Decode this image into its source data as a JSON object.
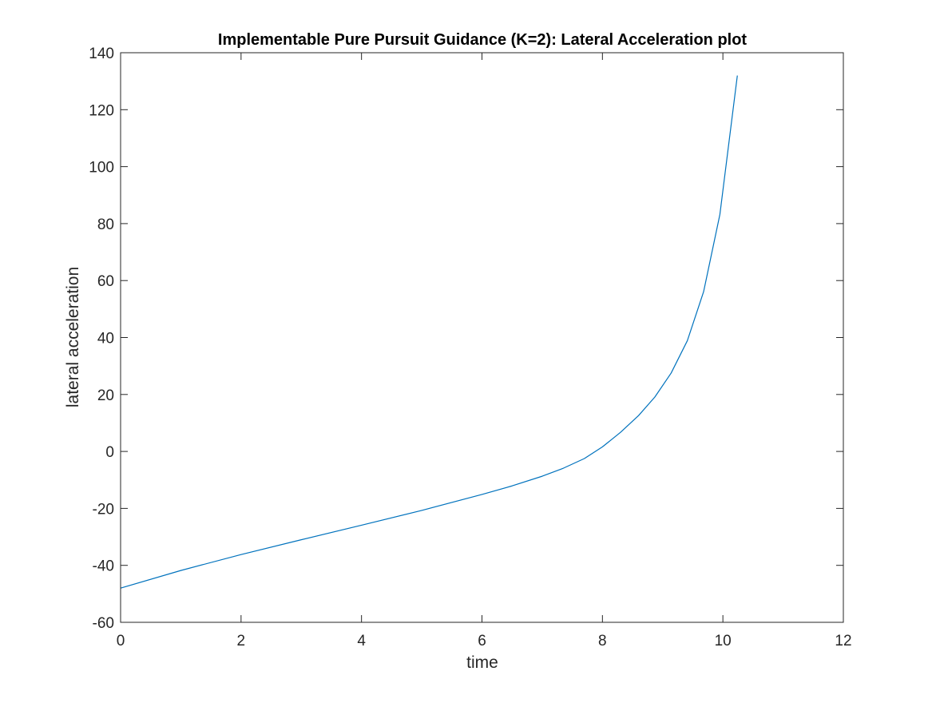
{
  "chart_data": {
    "type": "line",
    "title": "Implementable Pure Pursuit Guidance (K=2): Lateral Acceleration plot",
    "xlabel": "time",
    "ylabel": "lateral acceleration",
    "xlim": [
      0,
      12
    ],
    "ylim": [
      -60,
      140
    ],
    "xticks": [
      0,
      2,
      4,
      6,
      8,
      10,
      12
    ],
    "yticks": [
      -60,
      -40,
      -20,
      0,
      20,
      40,
      60,
      80,
      100,
      120,
      140
    ],
    "grid": false,
    "legend": "none",
    "series": [
      {
        "color": "#0072BD",
        "x": [
          0,
          1,
          2,
          3,
          4,
          5,
          6,
          6.5,
          7,
          7.35,
          7.7,
          8.0,
          8.3,
          8.6,
          8.87,
          9.14,
          9.41,
          9.68,
          9.95,
          10.24
        ],
        "y": [
          -48,
          -41.8,
          -36.2,
          -31,
          -25.9,
          -20.7,
          -15.1,
          -12.1,
          -8.7,
          -5.9,
          -2.5,
          1.6,
          6.7,
          12.6,
          19.1,
          27.5,
          38.9,
          56.1,
          83.2,
          132
        ]
      }
    ]
  }
}
